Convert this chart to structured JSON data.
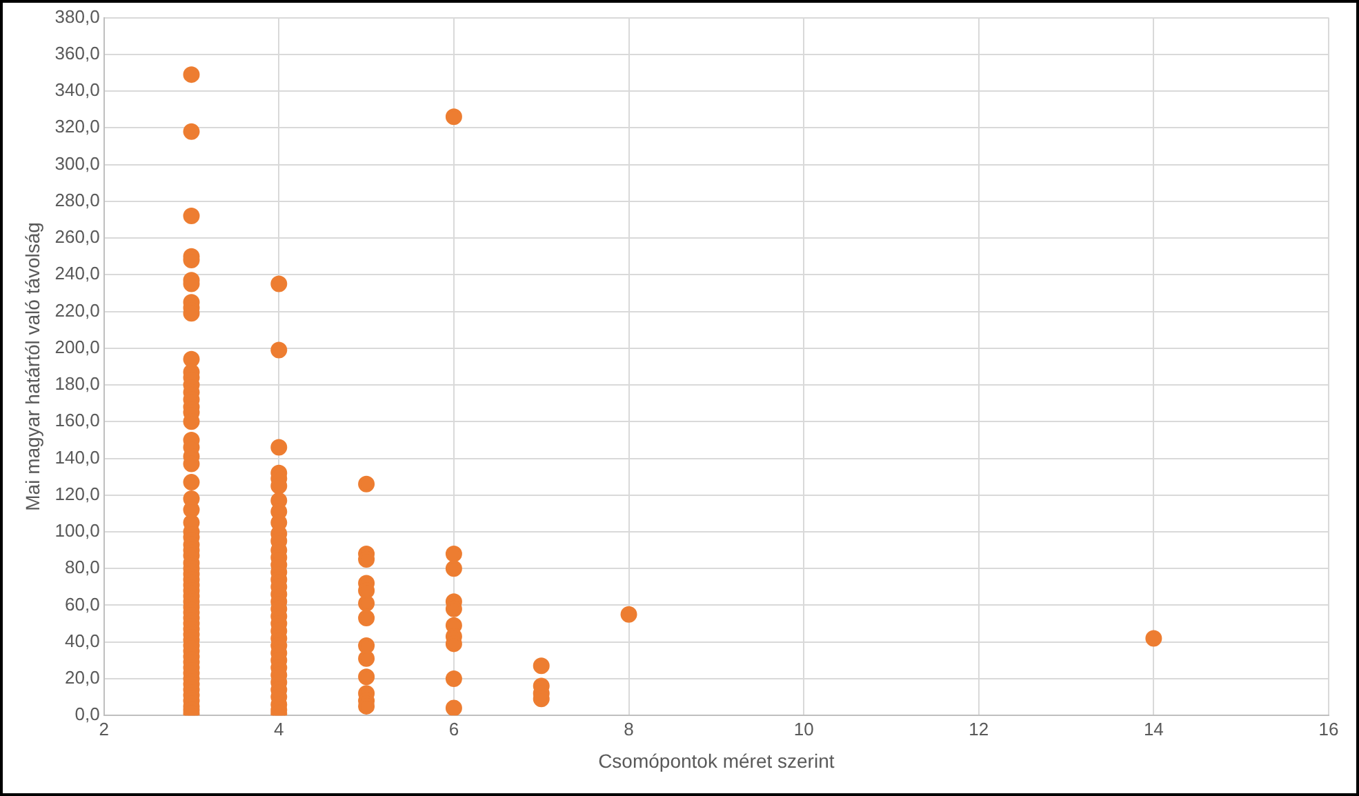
{
  "chart_data": {
    "type": "scatter",
    "xlabel": "Csomópontok méret szerint",
    "ylabel": "Mai magyar határtól való távolság",
    "x": [
      3,
      3,
      3,
      3,
      3,
      3,
      3,
      3,
      3,
      3,
      3,
      3,
      3,
      3,
      3,
      3,
      3,
      3,
      3,
      3,
      3,
      3,
      3,
      3,
      3,
      3,
      3,
      3,
      3,
      3,
      3,
      3,
      3,
      3,
      3,
      3,
      3,
      3,
      3,
      3,
      3,
      3,
      3,
      3,
      3,
      3,
      3,
      3,
      3,
      3,
      3,
      3,
      3,
      3,
      3,
      3,
      3,
      3,
      3,
      3,
      3,
      4,
      4,
      4,
      4,
      4,
      4,
      4,
      4,
      4,
      4,
      4,
      4,
      4,
      4,
      4,
      4,
      4,
      4,
      4,
      4,
      4,
      4,
      4,
      4,
      4,
      4,
      4,
      4,
      4,
      4,
      4,
      4,
      4,
      4,
      4,
      5,
      5,
      5,
      5,
      5,
      5,
      5,
      5,
      5,
      5,
      5,
      5,
      5,
      6,
      6,
      6,
      6,
      6,
      6,
      6,
      6,
      6,
      6,
      7,
      7,
      7,
      7,
      8,
      14
    ],
    "values": [
      349,
      318,
      272,
      250,
      248,
      237,
      235,
      225,
      222,
      219,
      194,
      187,
      184,
      180,
      176,
      172,
      168,
      165,
      160,
      150,
      146,
      141,
      137,
      127,
      118,
      112,
      105,
      100,
      97,
      93,
      90,
      87,
      83,
      80,
      77,
      74,
      71,
      68,
      65,
      62,
      59,
      56,
      53,
      50,
      47,
      44,
      41,
      38,
      35,
      32,
      29,
      26,
      23,
      20,
      17,
      14,
      11,
      8,
      5,
      3,
      1,
      235,
      199,
      146,
      132,
      129,
      125,
      117,
      111,
      105,
      99,
      95,
      90,
      86,
      82,
      78,
      74,
      70,
      66,
      62,
      58,
      54,
      50,
      46,
      42,
      38,
      34,
      30,
      26,
      22,
      18,
      14,
      10,
      6,
      3,
      1,
      126,
      88,
      85,
      72,
      68,
      61,
      53,
      38,
      31,
      21,
      12,
      8,
      5,
      326,
      88,
      80,
      62,
      58,
      49,
      43,
      39,
      20,
      4,
      27,
      16,
      12,
      9,
      55,
      42
    ],
    "color": "#ed7d31",
    "marker": "circle",
    "xlim": [
      2,
      16
    ],
    "xticks": [
      2,
      4,
      6,
      8,
      10,
      12,
      14,
      16
    ],
    "ylim": [
      0,
      380
    ],
    "yticks": [
      {
        "value": 0,
        "label": "0,0"
      },
      {
        "value": 20,
        "label": "20,0"
      },
      {
        "value": 40,
        "label": "40,0"
      },
      {
        "value": 60,
        "label": "60,0"
      },
      {
        "value": 80,
        "label": "80,0"
      },
      {
        "value": 100,
        "label": "100,0"
      },
      {
        "value": 120,
        "label": "120,0"
      },
      {
        "value": 140,
        "label": "140,0"
      },
      {
        "value": 160,
        "label": "160,0"
      },
      {
        "value": 180,
        "label": "180,0"
      },
      {
        "value": 200,
        "label": "200,0"
      },
      {
        "value": 220,
        "label": "220,0"
      },
      {
        "value": 240,
        "label": "240,0"
      },
      {
        "value": 260,
        "label": "260,0"
      },
      {
        "value": 280,
        "label": "280,0"
      },
      {
        "value": 300,
        "label": "300,0"
      },
      {
        "value": 320,
        "label": "320,0"
      },
      {
        "value": 340,
        "label": "340,0"
      },
      {
        "value": 360,
        "label": "360,0"
      },
      {
        "value": 380,
        "label": "380,0"
      }
    ],
    "grid": true
  }
}
